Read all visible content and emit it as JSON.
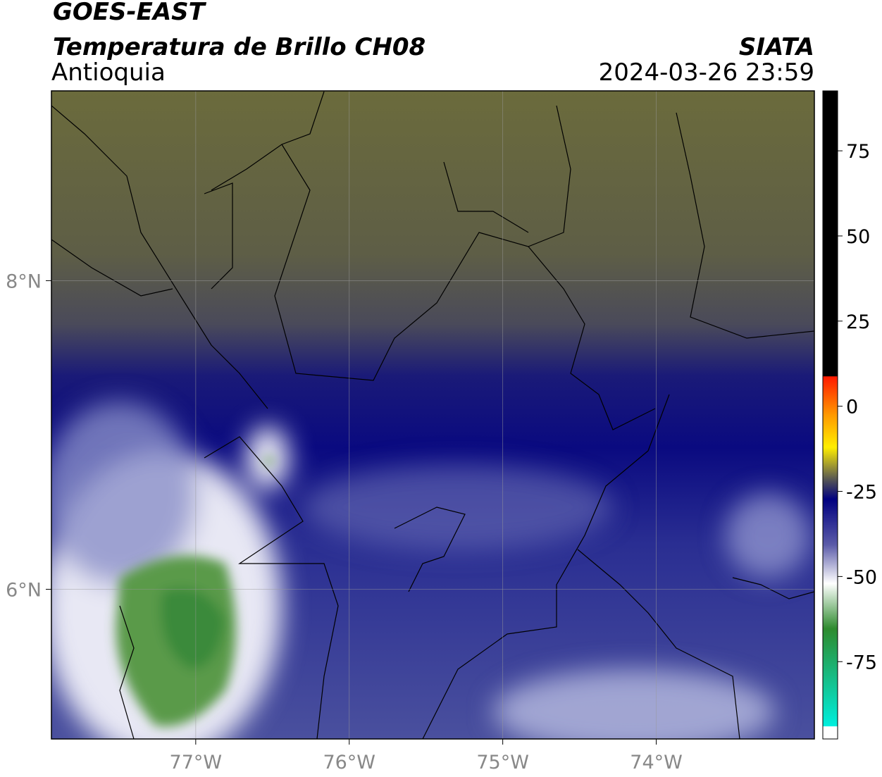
{
  "header": {
    "title": "GOES-EAST",
    "subtitle": "Temperatura de Brillo CH08",
    "region": "Antioquia",
    "source": "SIATA",
    "datetime": "2024-03-26 23:59"
  },
  "map": {
    "lonlim": [
      -77.94,
      -72.97
    ],
    "latlim": [
      5.03,
      9.23
    ],
    "lon_ticks": [
      {
        "value": -77,
        "label": "77°W"
      },
      {
        "value": -76,
        "label": "76°W"
      },
      {
        "value": -75,
        "label": "75°W"
      },
      {
        "value": -74,
        "label": "74°W"
      }
    ],
    "lat_ticks": [
      {
        "value": 8,
        "label": "8°N"
      },
      {
        "value": 6,
        "label": "6°N"
      }
    ]
  },
  "colorbar": {
    "lim": [
      -97.7,
      92.6
    ],
    "ticks": [
      75,
      50,
      25,
      0,
      -25,
      -50,
      -75
    ]
  }
}
